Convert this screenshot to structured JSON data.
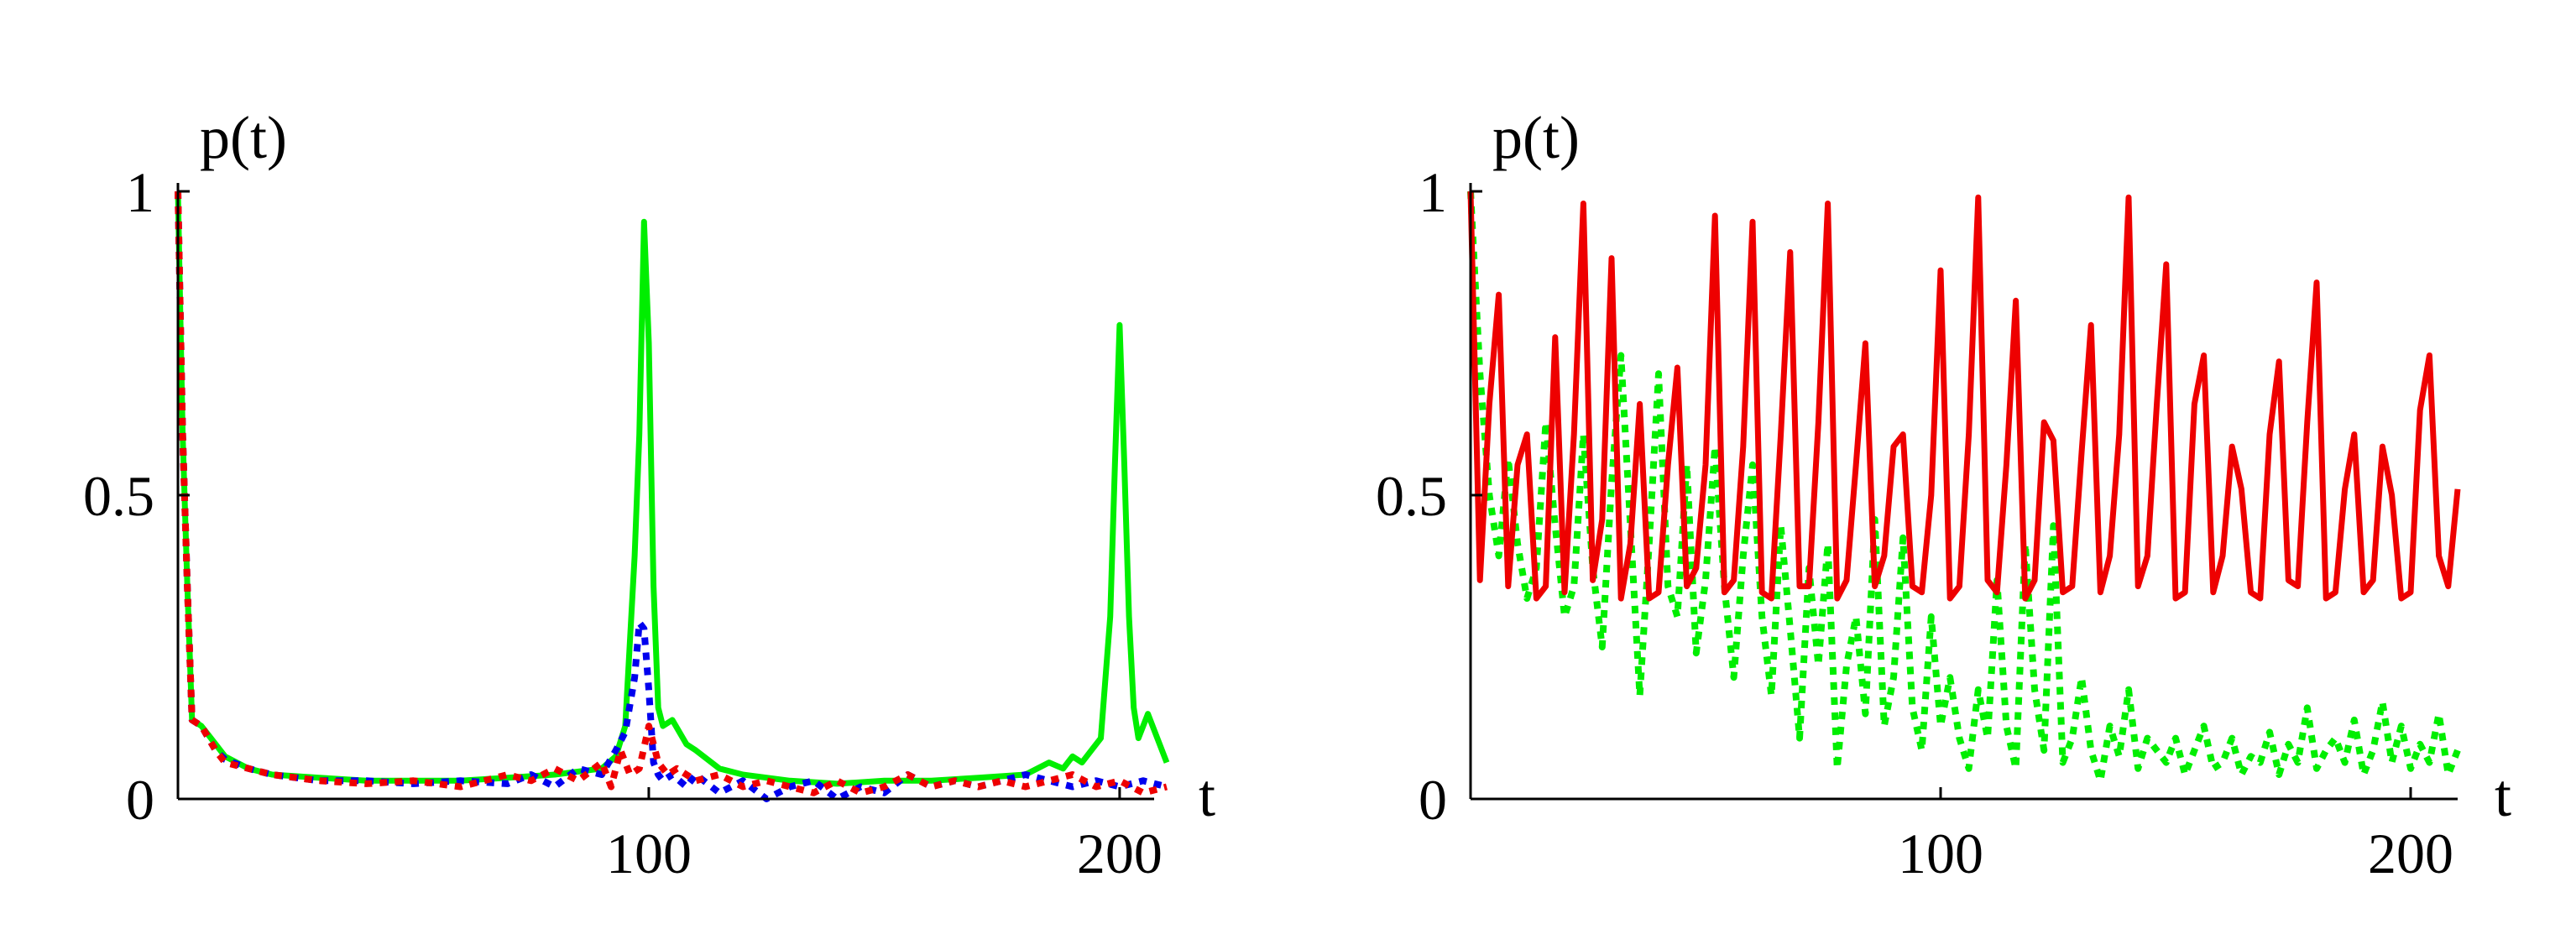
{
  "chart_data": [
    {
      "type": "line",
      "ylabel": "p(t)",
      "xlabel": "t",
      "xlim": [
        0,
        210
      ],
      "ylim": [
        0,
        1
      ],
      "xticks": [
        {
          "value": 100,
          "label": "100"
        },
        {
          "value": 200,
          "label": "200"
        }
      ],
      "yticks": [
        {
          "value": 0,
          "label": "0"
        },
        {
          "value": 0.5,
          "label": "0.5"
        },
        {
          "value": 1,
          "label": "1"
        }
      ],
      "grid": false,
      "series": [
        {
          "color": "#00ee00",
          "style": "solid",
          "x": [
            0,
            1,
            2,
            3,
            5,
            8,
            10,
            15,
            20,
            30,
            40,
            50,
            60,
            70,
            80,
            90,
            93,
            95,
            97,
            98,
            99,
            100,
            101,
            102,
            103,
            105,
            108,
            110,
            115,
            120,
            130,
            140,
            150,
            160,
            170,
            180,
            185,
            188,
            190,
            192,
            194,
            196,
            198,
            199,
            200,
            201,
            202,
            203,
            204,
            206,
            208,
            210
          ],
          "y": [
            1.0,
            0.6,
            0.35,
            0.13,
            0.12,
            0.09,
            0.07,
            0.05,
            0.04,
            0.035,
            0.03,
            0.03,
            0.03,
            0.035,
            0.04,
            0.05,
            0.07,
            0.12,
            0.4,
            0.6,
            0.95,
            0.75,
            0.35,
            0.15,
            0.12,
            0.13,
            0.09,
            0.08,
            0.05,
            0.04,
            0.03,
            0.025,
            0.03,
            0.03,
            0.035,
            0.04,
            0.06,
            0.05,
            0.07,
            0.06,
            0.08,
            0.1,
            0.3,
            0.55,
            0.78,
            0.55,
            0.3,
            0.15,
            0.1,
            0.14,
            0.1,
            0.06
          ]
        },
        {
          "color": "#0000ee",
          "style": "dotted",
          "x": [
            0,
            1,
            2,
            3,
            5,
            8,
            10,
            15,
            20,
            30,
            40,
            50,
            60,
            70,
            75,
            80,
            85,
            90,
            93,
            95,
            97,
            98,
            99,
            100,
            101,
            102,
            103,
            105,
            108,
            110,
            115,
            120,
            125,
            130,
            135,
            140,
            145,
            150,
            155,
            160,
            165,
            170,
            175,
            180,
            185,
            190,
            195,
            200,
            205,
            210
          ],
          "y": [
            1.0,
            0.6,
            0.35,
            0.13,
            0.12,
            0.08,
            0.065,
            0.05,
            0.04,
            0.03,
            0.03,
            0.025,
            0.03,
            0.025,
            0.04,
            0.02,
            0.05,
            0.04,
            0.08,
            0.11,
            0.2,
            0.29,
            0.28,
            0.18,
            0.06,
            0.04,
            0.03,
            0.04,
            0.02,
            0.04,
            0.01,
            0.03,
            0.0,
            0.02,
            0.03,
            0.0,
            0.02,
            0.01,
            0.04,
            0.02,
            0.03,
            0.02,
            0.03,
            0.04,
            0.03,
            0.02,
            0.03,
            0.02,
            0.03,
            0.02
          ]
        },
        {
          "color": "#ee0000",
          "style": "dotted",
          "x": [
            0,
            1,
            2,
            3,
            5,
            8,
            10,
            15,
            20,
            30,
            40,
            50,
            60,
            70,
            75,
            80,
            85,
            90,
            92,
            94,
            96,
            98,
            100,
            102,
            104,
            106,
            110,
            115,
            120,
            125,
            130,
            135,
            140,
            145,
            150,
            155,
            160,
            165,
            170,
            175,
            180,
            185,
            190,
            195,
            200,
            205,
            210
          ],
          "y": [
            1.0,
            0.6,
            0.35,
            0.13,
            0.12,
            0.08,
            0.06,
            0.05,
            0.04,
            0.03,
            0.025,
            0.03,
            0.02,
            0.04,
            0.03,
            0.05,
            0.03,
            0.06,
            0.02,
            0.08,
            0.04,
            0.05,
            0.12,
            0.06,
            0.04,
            0.05,
            0.03,
            0.04,
            0.02,
            0.03,
            0.02,
            0.01,
            0.03,
            0.01,
            0.02,
            0.04,
            0.02,
            0.03,
            0.02,
            0.03,
            0.02,
            0.03,
            0.04,
            0.02,
            0.03,
            0.01,
            0.02
          ]
        }
      ]
    },
    {
      "type": "line",
      "ylabel": "p(t)",
      "xlabel": "t",
      "xlim": [
        0,
        210
      ],
      "ylim": [
        0,
        1
      ],
      "xticks": [
        {
          "value": 100,
          "label": "100"
        },
        {
          "value": 200,
          "label": "200"
        }
      ],
      "yticks": [
        {
          "value": 0,
          "label": "0"
        },
        {
          "value": 0.5,
          "label": "0.5"
        },
        {
          "value": 1,
          "label": "1"
        }
      ],
      "grid": false,
      "series": [
        {
          "color": "#00ee00",
          "style": "dotted",
          "x": [
            0,
            2,
            4,
            6,
            8,
            10,
            12,
            14,
            16,
            18,
            20,
            22,
            24,
            26,
            28,
            30,
            32,
            34,
            36,
            38,
            40,
            42,
            44,
            46,
            48,
            50,
            52,
            54,
            56,
            58,
            60,
            62,
            64,
            66,
            68,
            70,
            72,
            74,
            76,
            78,
            80,
            82,
            84,
            86,
            88,
            90,
            92,
            94,
            96,
            98,
            100,
            102,
            104,
            106,
            108,
            110,
            112,
            114,
            116,
            118,
            120,
            122,
            124,
            126,
            128,
            130,
            132,
            134,
            136,
            138,
            140,
            142,
            144,
            146,
            148,
            150,
            152,
            154,
            156,
            158,
            160,
            162,
            164,
            166,
            168,
            170,
            172,
            174,
            176,
            178,
            180,
            182,
            184,
            186,
            188,
            190,
            192,
            194,
            196,
            198,
            200,
            202,
            204,
            206,
            208,
            210
          ],
          "y": [
            1.0,
            0.7,
            0.5,
            0.4,
            0.56,
            0.42,
            0.33,
            0.38,
            0.62,
            0.45,
            0.3,
            0.35,
            0.6,
            0.38,
            0.25,
            0.52,
            0.73,
            0.45,
            0.17,
            0.42,
            0.7,
            0.35,
            0.3,
            0.55,
            0.24,
            0.36,
            0.58,
            0.35,
            0.2,
            0.4,
            0.55,
            0.3,
            0.17,
            0.45,
            0.28,
            0.1,
            0.38,
            0.22,
            0.42,
            0.05,
            0.22,
            0.3,
            0.14,
            0.46,
            0.12,
            0.2,
            0.43,
            0.15,
            0.08,
            0.3,
            0.12,
            0.2,
            0.1,
            0.05,
            0.18,
            0.1,
            0.36,
            0.12,
            0.05,
            0.42,
            0.18,
            0.08,
            0.45,
            0.06,
            0.1,
            0.2,
            0.08,
            0.03,
            0.12,
            0.07,
            0.18,
            0.05,
            0.1,
            0.08,
            0.06,
            0.1,
            0.04,
            0.08,
            0.12,
            0.05,
            0.06,
            0.1,
            0.04,
            0.07,
            0.06,
            0.11,
            0.04,
            0.09,
            0.06,
            0.15,
            0.05,
            0.08,
            0.1,
            0.06,
            0.13,
            0.04,
            0.08,
            0.16,
            0.06,
            0.12,
            0.05,
            0.09,
            0.06,
            0.14,
            0.04,
            0.08
          ]
        },
        {
          "color": "#ee0000",
          "style": "solid",
          "x": [
            0,
            2,
            4,
            6,
            8,
            10,
            12,
            14,
            16,
            18,
            20,
            22,
            24,
            26,
            28,
            30,
            32,
            34,
            36,
            38,
            40,
            42,
            44,
            46,
            48,
            50,
            52,
            54,
            56,
            58,
            60,
            62,
            64,
            66,
            68,
            70,
            72,
            74,
            76,
            78,
            80,
            82,
            84,
            86,
            88,
            90,
            92,
            94,
            96,
            98,
            100,
            102,
            104,
            106,
            108,
            110,
            112,
            114,
            116,
            118,
            120,
            122,
            124,
            126,
            128,
            130,
            132,
            134,
            136,
            138,
            140,
            142,
            144,
            146,
            148,
            150,
            152,
            154,
            156,
            158,
            160,
            162,
            164,
            166,
            168,
            170,
            172,
            174,
            176,
            178,
            180,
            182,
            184,
            186,
            188,
            190,
            192,
            194,
            196,
            198,
            200,
            202,
            204,
            206,
            208,
            210
          ],
          "y": [
            1.0,
            0.36,
            0.65,
            0.83,
            0.35,
            0.55,
            0.6,
            0.33,
            0.35,
            0.76,
            0.34,
            0.6,
            0.98,
            0.36,
            0.46,
            0.89,
            0.33,
            0.42,
            0.65,
            0.33,
            0.34,
            0.55,
            0.71,
            0.35,
            0.38,
            0.55,
            0.96,
            0.34,
            0.36,
            0.58,
            0.95,
            0.34,
            0.33,
            0.6,
            0.9,
            0.35,
            0.35,
            0.62,
            0.98,
            0.33,
            0.36,
            0.55,
            0.75,
            0.35,
            0.4,
            0.58,
            0.6,
            0.35,
            0.34,
            0.5,
            0.87,
            0.33,
            0.35,
            0.6,
            0.99,
            0.36,
            0.34,
            0.55,
            0.82,
            0.33,
            0.36,
            0.62,
            0.59,
            0.34,
            0.35,
            0.57,
            0.78,
            0.34,
            0.4,
            0.6,
            0.99,
            0.35,
            0.4,
            0.65,
            0.88,
            0.33,
            0.34,
            0.65,
            0.73,
            0.34,
            0.4,
            0.58,
            0.51,
            0.34,
            0.33,
            0.6,
            0.72,
            0.36,
            0.35,
            0.62,
            0.85,
            0.33,
            0.34,
            0.51,
            0.6,
            0.34,
            0.36,
            0.58,
            0.5,
            0.33,
            0.34,
            0.64,
            0.73,
            0.4,
            0.35,
            0.51
          ]
        }
      ]
    }
  ]
}
